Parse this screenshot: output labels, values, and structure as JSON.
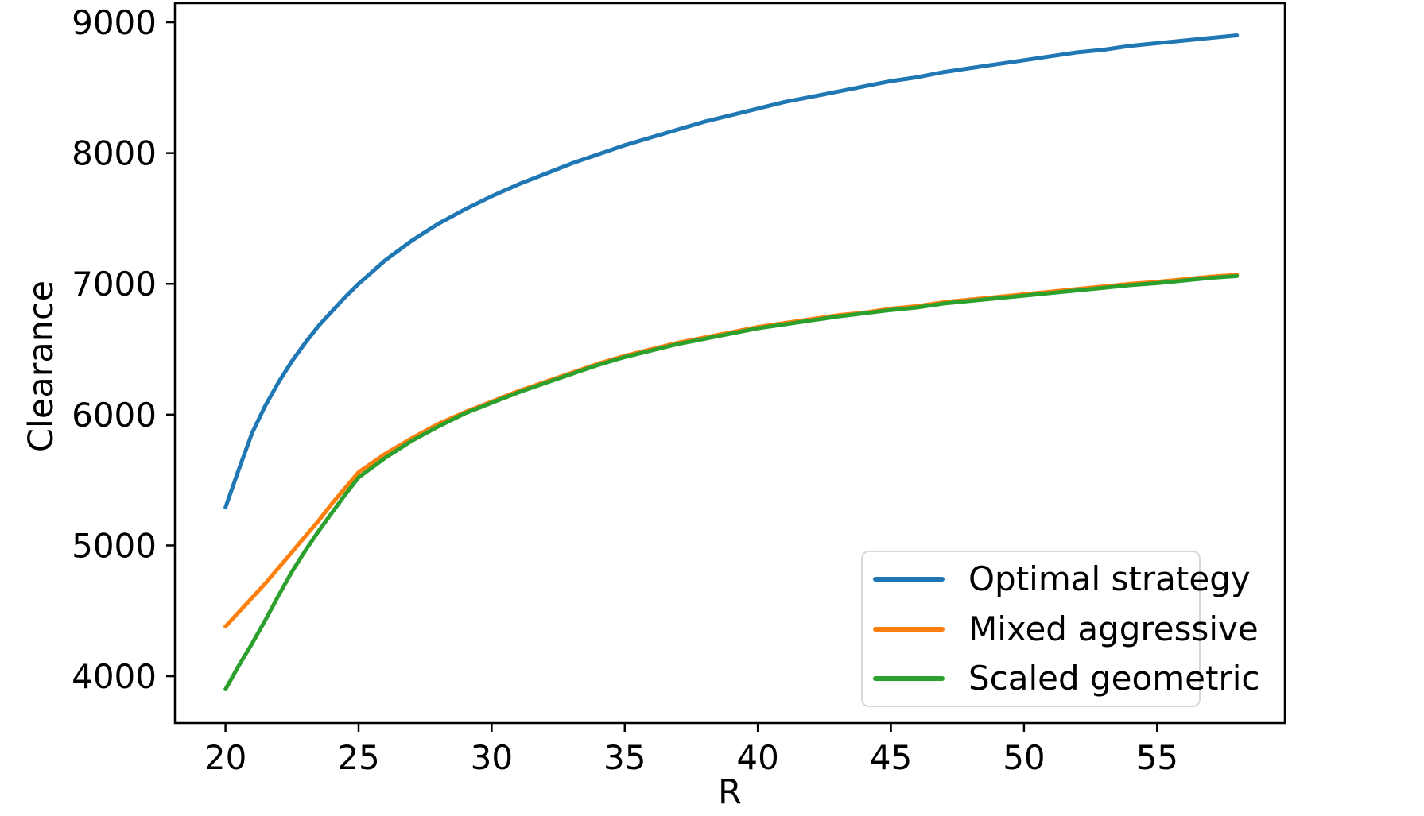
{
  "chart_data": {
    "type": "line",
    "title": "",
    "xlabel": "R",
    "ylabel": "Clearance",
    "xticks": [
      20,
      25,
      30,
      35,
      40,
      45,
      50,
      55
    ],
    "yticks": [
      4000,
      5000,
      6000,
      7000,
      8000,
      9000
    ],
    "xlim": [
      18.1,
      59.8
    ],
    "ylim": [
      3642,
      9146
    ],
    "grid": false,
    "legend_position": "lower right",
    "axis_color": "#000000",
    "series": [
      {
        "name": "Optimal strategy",
        "color": "#1f77b4",
        "points": [
          [
            20,
            5290
          ],
          [
            20.5,
            5580
          ],
          [
            21,
            5860
          ],
          [
            21.5,
            6070
          ],
          [
            22,
            6250
          ],
          [
            22.5,
            6410
          ],
          [
            23,
            6550
          ],
          [
            23.5,
            6680
          ],
          [
            24,
            6790
          ],
          [
            24.5,
            6900
          ],
          [
            25,
            7000
          ],
          [
            26,
            7180
          ],
          [
            27,
            7330
          ],
          [
            28,
            7460
          ],
          [
            29,
            7570
          ],
          [
            30,
            7670
          ],
          [
            31,
            7760
          ],
          [
            32,
            7840
          ],
          [
            33,
            7920
          ],
          [
            34,
            7990
          ],
          [
            35,
            8060
          ],
          [
            36,
            8120
          ],
          [
            37,
            8180
          ],
          [
            38,
            8240
          ],
          [
            39,
            8290
          ],
          [
            40,
            8340
          ],
          [
            41,
            8390
          ],
          [
            42,
            8430
          ],
          [
            43,
            8470
          ],
          [
            44,
            8510
          ],
          [
            45,
            8550
          ],
          [
            46,
            8580
          ],
          [
            47,
            8620
          ],
          [
            48,
            8650
          ],
          [
            49,
            8680
          ],
          [
            50,
            8710
          ],
          [
            51,
            8740
          ],
          [
            52,
            8770
          ],
          [
            53,
            8790
          ],
          [
            54,
            8820
          ],
          [
            55,
            8840
          ],
          [
            56,
            8860
          ],
          [
            57,
            8880
          ],
          [
            58,
            8900
          ]
        ]
      },
      {
        "name": "Mixed aggressive",
        "color": "#ff7f0e",
        "points": [
          [
            20,
            4380
          ],
          [
            20.5,
            4490
          ],
          [
            21,
            4600
          ],
          [
            21.5,
            4710
          ],
          [
            22,
            4830
          ],
          [
            22.5,
            4950
          ],
          [
            23,
            5070
          ],
          [
            23.5,
            5190
          ],
          [
            24,
            5320
          ],
          [
            24.5,
            5440
          ],
          [
            25,
            5560
          ],
          [
            26,
            5700
          ],
          [
            27,
            5820
          ],
          [
            28,
            5930
          ],
          [
            29,
            6020
          ],
          [
            30,
            6100
          ],
          [
            31,
            6180
          ],
          [
            32,
            6250
          ],
          [
            33,
            6320
          ],
          [
            34,
            6390
          ],
          [
            35,
            6450
          ],
          [
            36,
            6500
          ],
          [
            37,
            6550
          ],
          [
            38,
            6590
          ],
          [
            39,
            6630
          ],
          [
            40,
            6670
          ],
          [
            41,
            6700
          ],
          [
            42,
            6730
          ],
          [
            43,
            6760
          ],
          [
            44,
            6780
          ],
          [
            45,
            6810
          ],
          [
            46,
            6830
          ],
          [
            47,
            6860
          ],
          [
            48,
            6880
          ],
          [
            49,
            6900
          ],
          [
            50,
            6920
          ],
          [
            51,
            6940
          ],
          [
            52,
            6960
          ],
          [
            53,
            6980
          ],
          [
            54,
            7000
          ],
          [
            55,
            7015
          ],
          [
            56,
            7035
          ],
          [
            57,
            7055
          ],
          [
            58,
            7070
          ]
        ]
      },
      {
        "name": "Scaled geometric",
        "color": "#2ca02c",
        "points": [
          [
            20,
            3900
          ],
          [
            20.5,
            4080
          ],
          [
            21,
            4250
          ],
          [
            21.5,
            4430
          ],
          [
            22,
            4620
          ],
          [
            22.5,
            4800
          ],
          [
            23,
            4960
          ],
          [
            23.5,
            5110
          ],
          [
            24,
            5250
          ],
          [
            24.5,
            5390
          ],
          [
            25,
            5520
          ],
          [
            26,
            5670
          ],
          [
            27,
            5800
          ],
          [
            28,
            5910
          ],
          [
            29,
            6010
          ],
          [
            30,
            6090
          ],
          [
            31,
            6170
          ],
          [
            32,
            6240
          ],
          [
            33,
            6310
          ],
          [
            34,
            6380
          ],
          [
            35,
            6440
          ],
          [
            36,
            6490
          ],
          [
            37,
            6540
          ],
          [
            38,
            6580
          ],
          [
            39,
            6620
          ],
          [
            40,
            6660
          ],
          [
            41,
            6690
          ],
          [
            42,
            6720
          ],
          [
            43,
            6750
          ],
          [
            44,
            6775
          ],
          [
            45,
            6800
          ],
          [
            46,
            6820
          ],
          [
            47,
            6850
          ],
          [
            48,
            6870
          ],
          [
            49,
            6890
          ],
          [
            50,
            6910
          ],
          [
            51,
            6930
          ],
          [
            52,
            6950
          ],
          [
            53,
            6970
          ],
          [
            54,
            6990
          ],
          [
            55,
            7005
          ],
          [
            56,
            7025
          ],
          [
            57,
            7045
          ],
          [
            58,
            7060
          ]
        ]
      }
    ]
  }
}
